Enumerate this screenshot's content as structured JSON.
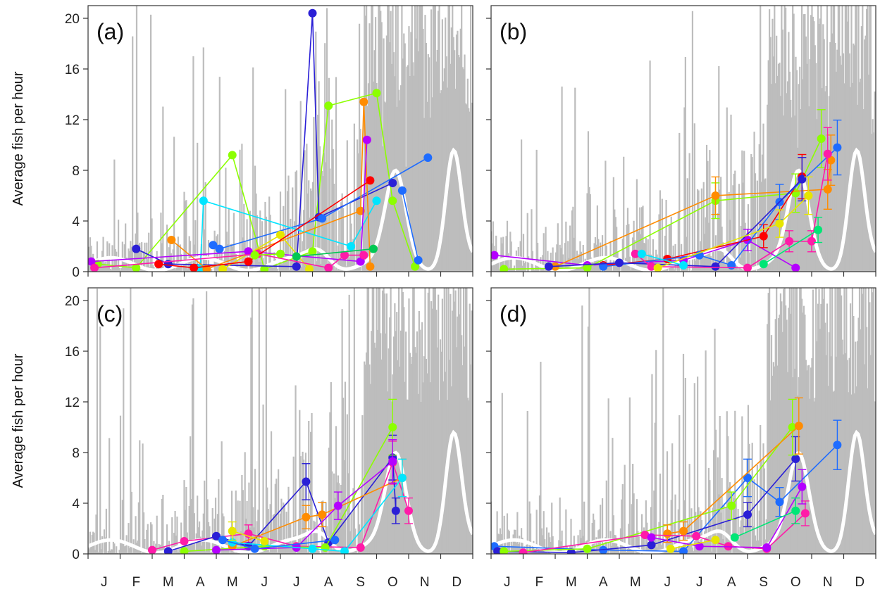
{
  "figure": {
    "ylabel": "Average fish per hour",
    "months": [
      "J",
      "F",
      "M",
      "A",
      "M",
      "J",
      "J",
      "A",
      "S",
      "O",
      "N",
      "D"
    ],
    "yticks": [
      0,
      4,
      8,
      12,
      16,
      20
    ],
    "colors": {
      "background_series": "#bdbdbd",
      "smooth_line": "#ffffff",
      "palette": [
        "#ff0000",
        "#ff8c00",
        "#e6e600",
        "#8cff00",
        "#00e676",
        "#00e5ff",
        "#1e6cff",
        "#2a1fd6",
        "#b400ff",
        "#ff1aa8",
        "#00c853",
        "#7cff4d"
      ]
    }
  },
  "chart_data": [
    {
      "type": "line",
      "panel": "(a)",
      "xlabel": "",
      "ylabel": "Average fish per hour",
      "ylim": [
        0,
        21
      ],
      "x_ticks": [
        "J",
        "F",
        "M",
        "A",
        "M",
        "J",
        "J",
        "A",
        "S",
        "O",
        "N",
        "D"
      ],
      "series": [
        {
          "color": "#8cff00",
          "points": [
            [
              0.3,
              0.6
            ],
            [
              1.5,
              0.3
            ],
            [
              4.5,
              9.2
            ],
            [
              5.5,
              0.2
            ],
            [
              7.0,
              1.6
            ],
            [
              7.5,
              13.1
            ],
            [
              9.0,
              14.1
            ],
            [
              9.5,
              5.6
            ],
            [
              10.2,
              0.4
            ]
          ]
        },
        {
          "color": "#2a1fd6",
          "points": [
            [
              1.5,
              1.8
            ],
            [
              2.5,
              0.6
            ],
            [
              6.5,
              0.4
            ],
            [
              7.0,
              20.4
            ],
            [
              7.2,
              4.3
            ],
            [
              9.5,
              7.0
            ]
          ]
        },
        {
          "color": "#1e6cff",
          "points": [
            [
              3.9,
              2.1
            ],
            [
              4.1,
              1.8
            ],
            [
              7.3,
              4.2
            ],
            [
              10.6,
              9.0
            ]
          ]
        },
        {
          "color": "#00e5ff",
          "points": [
            [
              3.5,
              0.3
            ],
            [
              3.6,
              5.6
            ],
            [
              8.2,
              2.0
            ],
            [
              9.0,
              5.6
            ]
          ]
        },
        {
          "color": "#ff8c00",
          "points": [
            [
              2.6,
              2.5
            ],
            [
              3.7,
              0.2
            ],
            [
              8.5,
              4.8
            ],
            [
              8.6,
              13.4
            ],
            [
              8.8,
              0.4
            ]
          ]
        },
        {
          "color": "#e6e600",
          "points": [
            [
              4.2,
              0.2
            ],
            [
              6.0,
              2.9
            ],
            [
              6.9,
              0.2
            ]
          ]
        },
        {
          "color": "#b400ff",
          "points": [
            [
              0.1,
              0.8
            ],
            [
              5.0,
              1.6
            ],
            [
              8.5,
              0.8
            ],
            [
              8.7,
              10.4
            ]
          ]
        },
        {
          "color": "#ff1aa8",
          "points": [
            [
              0.2,
              0.3
            ],
            [
              5.3,
              1.4
            ],
            [
              7.5,
              0.3
            ],
            [
              8.0,
              1.3
            ],
            [
              8.6,
              1.3
            ]
          ]
        },
        {
          "color": "#ff0000",
          "points": [
            [
              2.2,
              0.6
            ],
            [
              3.3,
              0.3
            ],
            [
              5.0,
              0.8
            ],
            [
              8.8,
              7.2
            ]
          ]
        },
        {
          "color": "#00c853",
          "points": [
            [
              6.5,
              1.2
            ],
            [
              8.9,
              1.8
            ]
          ]
        },
        {
          "color": "#1e6cff",
          "points": [
            [
              9.8,
              6.4
            ],
            [
              10.3,
              0.9
            ]
          ]
        },
        {
          "color": "#8cff00",
          "points": [
            [
              5.2,
              1.3
            ],
            [
              6.0,
              1.4
            ]
          ]
        }
      ]
    },
    {
      "type": "line",
      "panel": "(b)",
      "xlabel": "",
      "ylabel": "",
      "ylim": [
        0,
        21
      ],
      "x_ticks": [
        "J",
        "F",
        "M",
        "A",
        "M",
        "J",
        "J",
        "A",
        "S",
        "O",
        "N",
        "D"
      ],
      "series": [
        {
          "color": "#b400ff",
          "points": [
            [
              0.1,
              1.3
            ],
            [
              3.0,
              0.5
            ],
            [
              6.0,
              0.9
            ],
            [
              8.0,
              2.5
            ],
            [
              9.5,
              0.3
            ]
          ]
        },
        {
          "color": "#8cff00",
          "points": [
            [
              0.4,
              0.2
            ],
            [
              3.0,
              0.3
            ],
            [
              7.0,
              5.6
            ],
            [
              9.5,
              6.2
            ],
            [
              10.3,
              10.5
            ]
          ]
        },
        {
          "color": "#ff8c00",
          "points": [
            [
              2.0,
              0.4
            ],
            [
              7.0,
              6.0
            ],
            [
              10.5,
              6.5
            ],
            [
              10.6,
              8.8
            ]
          ]
        },
        {
          "color": "#ff0000",
          "points": [
            [
              3.5,
              0.5
            ],
            [
              5.5,
              1.0
            ],
            [
              8.5,
              2.8
            ],
            [
              9.7,
              7.5
            ]
          ]
        },
        {
          "color": "#1e6cff",
          "points": [
            [
              3.5,
              0.4
            ],
            [
              6.5,
              1.3
            ],
            [
              7.5,
              0.5
            ],
            [
              9.0,
              5.5
            ],
            [
              10.8,
              9.8
            ]
          ]
        },
        {
          "color": "#2a1fd6",
          "points": [
            [
              1.8,
              0.4
            ],
            [
              4.0,
              0.7
            ],
            [
              7.0,
              0.4
            ],
            [
              9.7,
              7.3
            ]
          ]
        },
        {
          "color": "#ff1aa8",
          "points": [
            [
              4.5,
              1.4
            ],
            [
              5.0,
              0.4
            ],
            [
              8.0,
              0.3
            ],
            [
              9.3,
              2.4
            ],
            [
              10.0,
              2.4
            ],
            [
              10.5,
              9.3
            ]
          ]
        },
        {
          "color": "#e6e600",
          "points": [
            [
              5.2,
              0.3
            ],
            [
              9.0,
              3.8
            ],
            [
              9.9,
              6.0
            ]
          ]
        },
        {
          "color": "#00e5ff",
          "points": [
            [
              4.7,
              1.4
            ],
            [
              6.0,
              0.5
            ]
          ]
        },
        {
          "color": "#00e676",
          "points": [
            [
              8.5,
              0.6
            ],
            [
              10.2,
              3.3
            ]
          ]
        }
      ]
    },
    {
      "type": "line",
      "panel": "(c)",
      "xlabel": "",
      "ylabel": "Average fish per hour",
      "ylim": [
        0,
        21
      ],
      "x_ticks": [
        "J",
        "F",
        "M",
        "A",
        "M",
        "J",
        "J",
        "A",
        "S",
        "O",
        "N",
        "D"
      ],
      "series": [
        {
          "color": "#ff1aa8",
          "points": [
            [
              2.0,
              0.3
            ],
            [
              3.0,
              1.0
            ],
            [
              5.0,
              1.6
            ],
            [
              6.5,
              0.6
            ],
            [
              8.5,
              0.5
            ],
            [
              9.5,
              7.2
            ],
            [
              10.0,
              3.4
            ]
          ]
        },
        {
          "color": "#2a1fd6",
          "points": [
            [
              2.5,
              0.2
            ],
            [
              4.0,
              1.4
            ],
            [
              5.0,
              0.6
            ],
            [
              6.8,
              5.7
            ],
            [
              7.5,
              0.9
            ],
            [
              9.5,
              7.6
            ],
            [
              9.6,
              3.4
            ]
          ]
        },
        {
          "color": "#8cff00",
          "points": [
            [
              3.0,
              0.2
            ],
            [
              5.5,
              0.6
            ],
            [
              7.4,
              0.5
            ],
            [
              9.5,
              10.0
            ]
          ]
        },
        {
          "color": "#ff8c00",
          "points": [
            [
              4.5,
              0.6
            ],
            [
              6.8,
              2.9
            ],
            [
              7.3,
              3.1
            ],
            [
              9.8,
              6.0
            ]
          ]
        },
        {
          "color": "#b400ff",
          "points": [
            [
              4.0,
              0.3
            ],
            [
              6.5,
              0.5
            ],
            [
              7.8,
              3.8
            ],
            [
              9.5,
              7.3
            ]
          ]
        },
        {
          "color": "#00e5ff",
          "points": [
            [
              4.5,
              0.9
            ],
            [
              7.0,
              0.4
            ],
            [
              8.0,
              0.2
            ],
            [
              9.8,
              6.0
            ]
          ]
        },
        {
          "color": "#1e6cff",
          "points": [
            [
              4.2,
              1.1
            ],
            [
              5.2,
              0.4
            ],
            [
              7.7,
              1.1
            ]
          ]
        },
        {
          "color": "#e6e600",
          "points": [
            [
              4.5,
              1.8
            ],
            [
              5.5,
              1.0
            ]
          ]
        }
      ]
    },
    {
      "type": "line",
      "panel": "(d)",
      "xlabel": "",
      "ylabel": "",
      "ylim": [
        0,
        21
      ],
      "x_ticks": [
        "J",
        "F",
        "M",
        "A",
        "M",
        "J",
        "J",
        "A",
        "S",
        "O",
        "N",
        "D"
      ],
      "series": [
        {
          "color": "#1e6cff",
          "points": [
            [
              0.1,
              0.6
            ],
            [
              3.5,
              0.3
            ],
            [
              6.0,
              0.2
            ],
            [
              8.0,
              6.0
            ],
            [
              9.0,
              4.1
            ],
            [
              10.8,
              8.6
            ]
          ]
        },
        {
          "color": "#2a1fd6",
          "points": [
            [
              0.2,
              0.2
            ],
            [
              2.5,
              0.1
            ],
            [
              5.0,
              0.7
            ],
            [
              8.0,
              3.1
            ],
            [
              9.5,
              7.5
            ]
          ]
        },
        {
          "color": "#8cff00",
          "points": [
            [
              0.4,
              0.2
            ],
            [
              3.0,
              0.4
            ],
            [
              7.5,
              3.8
            ],
            [
              9.4,
              10.0
            ]
          ]
        },
        {
          "color": "#ff8c00",
          "points": [
            [
              5.5,
              1.6
            ],
            [
              6.0,
              1.8
            ],
            [
              9.6,
              10.1
            ]
          ]
        },
        {
          "color": "#ff1aa8",
          "points": [
            [
              1.0,
              0.1
            ],
            [
              4.8,
              1.5
            ],
            [
              6.4,
              1.4
            ],
            [
              7.4,
              0.6
            ],
            [
              8.6,
              0.4
            ],
            [
              9.8,
              3.2
            ]
          ]
        },
        {
          "color": "#b400ff",
          "points": [
            [
              5.0,
              1.3
            ],
            [
              6.5,
              0.6
            ],
            [
              8.6,
              0.5
            ],
            [
              9.7,
              5.3
            ]
          ]
        },
        {
          "color": "#00e676",
          "points": [
            [
              7.6,
              1.3
            ],
            [
              9.5,
              3.4
            ]
          ]
        },
        {
          "color": "#e6e600",
          "points": [
            [
              5.6,
              0.4
            ],
            [
              7.0,
              1.1
            ]
          ]
        }
      ]
    }
  ]
}
